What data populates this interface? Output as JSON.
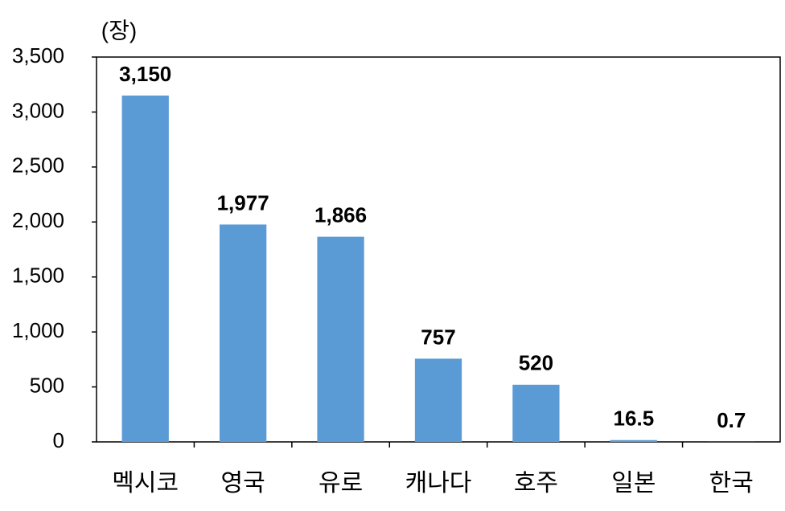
{
  "chart_data": {
    "type": "bar",
    "y_label": "(장)",
    "categories": [
      "멕시코",
      "영국",
      "유로",
      "캐나다",
      "호주",
      "일본",
      "한국"
    ],
    "values": [
      3150,
      1977,
      1866,
      757,
      520,
      16.5,
      0.7
    ],
    "value_labels": [
      "3,150",
      "1,977",
      "1,866",
      "757",
      "520",
      "16.5",
      "0.7"
    ],
    "color": "#5b9bd5",
    "ylim": [
      0,
      3500
    ],
    "yticks": [
      0,
      500,
      {
        "value": 1000,
        "label": "1,000"
      },
      {
        "value": 1500,
        "label": "1,500"
      },
      {
        "value": 2000,
        "label": "2,000"
      },
      {
        "value": 2500,
        "label": "2,500"
      },
      {
        "value": 3000,
        "label": "3,000"
      },
      {
        "value": 3500,
        "label": "3,500"
      }
    ],
    "grid": false
  }
}
